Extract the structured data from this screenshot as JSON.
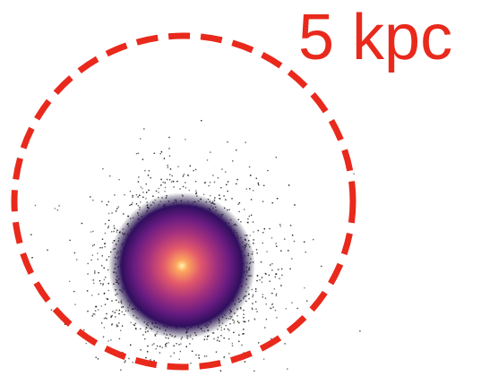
{
  "label": "5 kpc"
}
